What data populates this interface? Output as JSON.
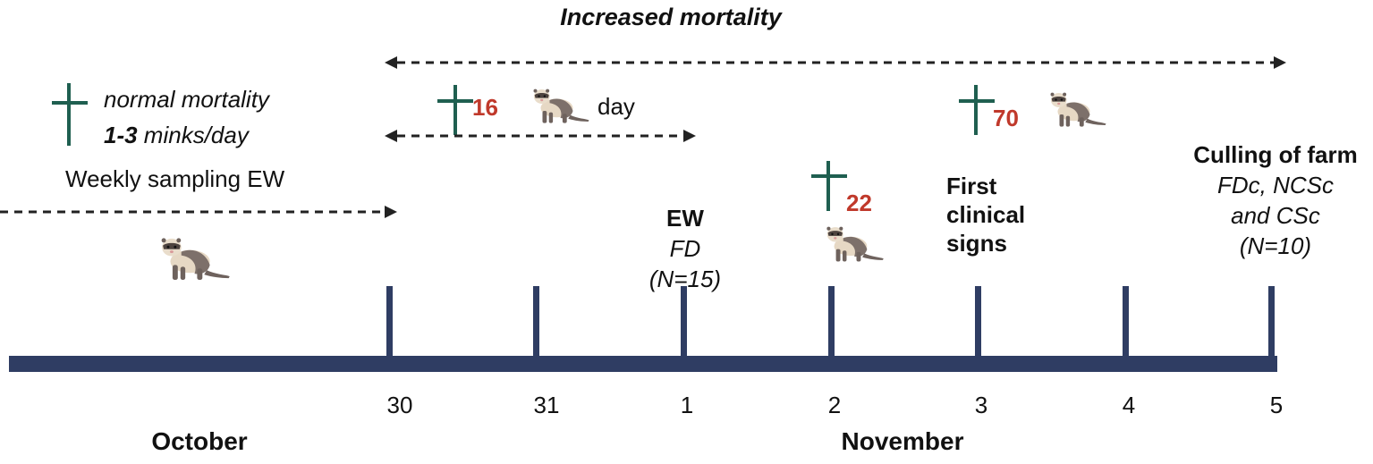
{
  "title": "Increased mortality",
  "normal": {
    "line1": "normal  mortality",
    "count": "1-3",
    "unit": " minks/day",
    "sampling": "Weekly sampling EW"
  },
  "period1": {
    "count": "16",
    "unit": "day"
  },
  "events": {
    "ew": {
      "title": "EW",
      "sub": "FD",
      "n": "(N=15)"
    },
    "day2": {
      "count": "22"
    },
    "day3": {
      "count": "70",
      "title1": "First",
      "title2": "clinical",
      "title3": "signs"
    },
    "cull": {
      "title": "Culling of farm",
      "sub1": "FDc, NCSc",
      "sub2": "and CSc",
      "n": "(N=10)"
    }
  },
  "ticks": [
    "30",
    "31",
    "1",
    "2",
    "3",
    "4",
    "5"
  ],
  "months": [
    "October",
    "November"
  ],
  "colors": {
    "axis": "#2f3d63",
    "cross": "#1f5f50",
    "count": "#c0392b"
  }
}
